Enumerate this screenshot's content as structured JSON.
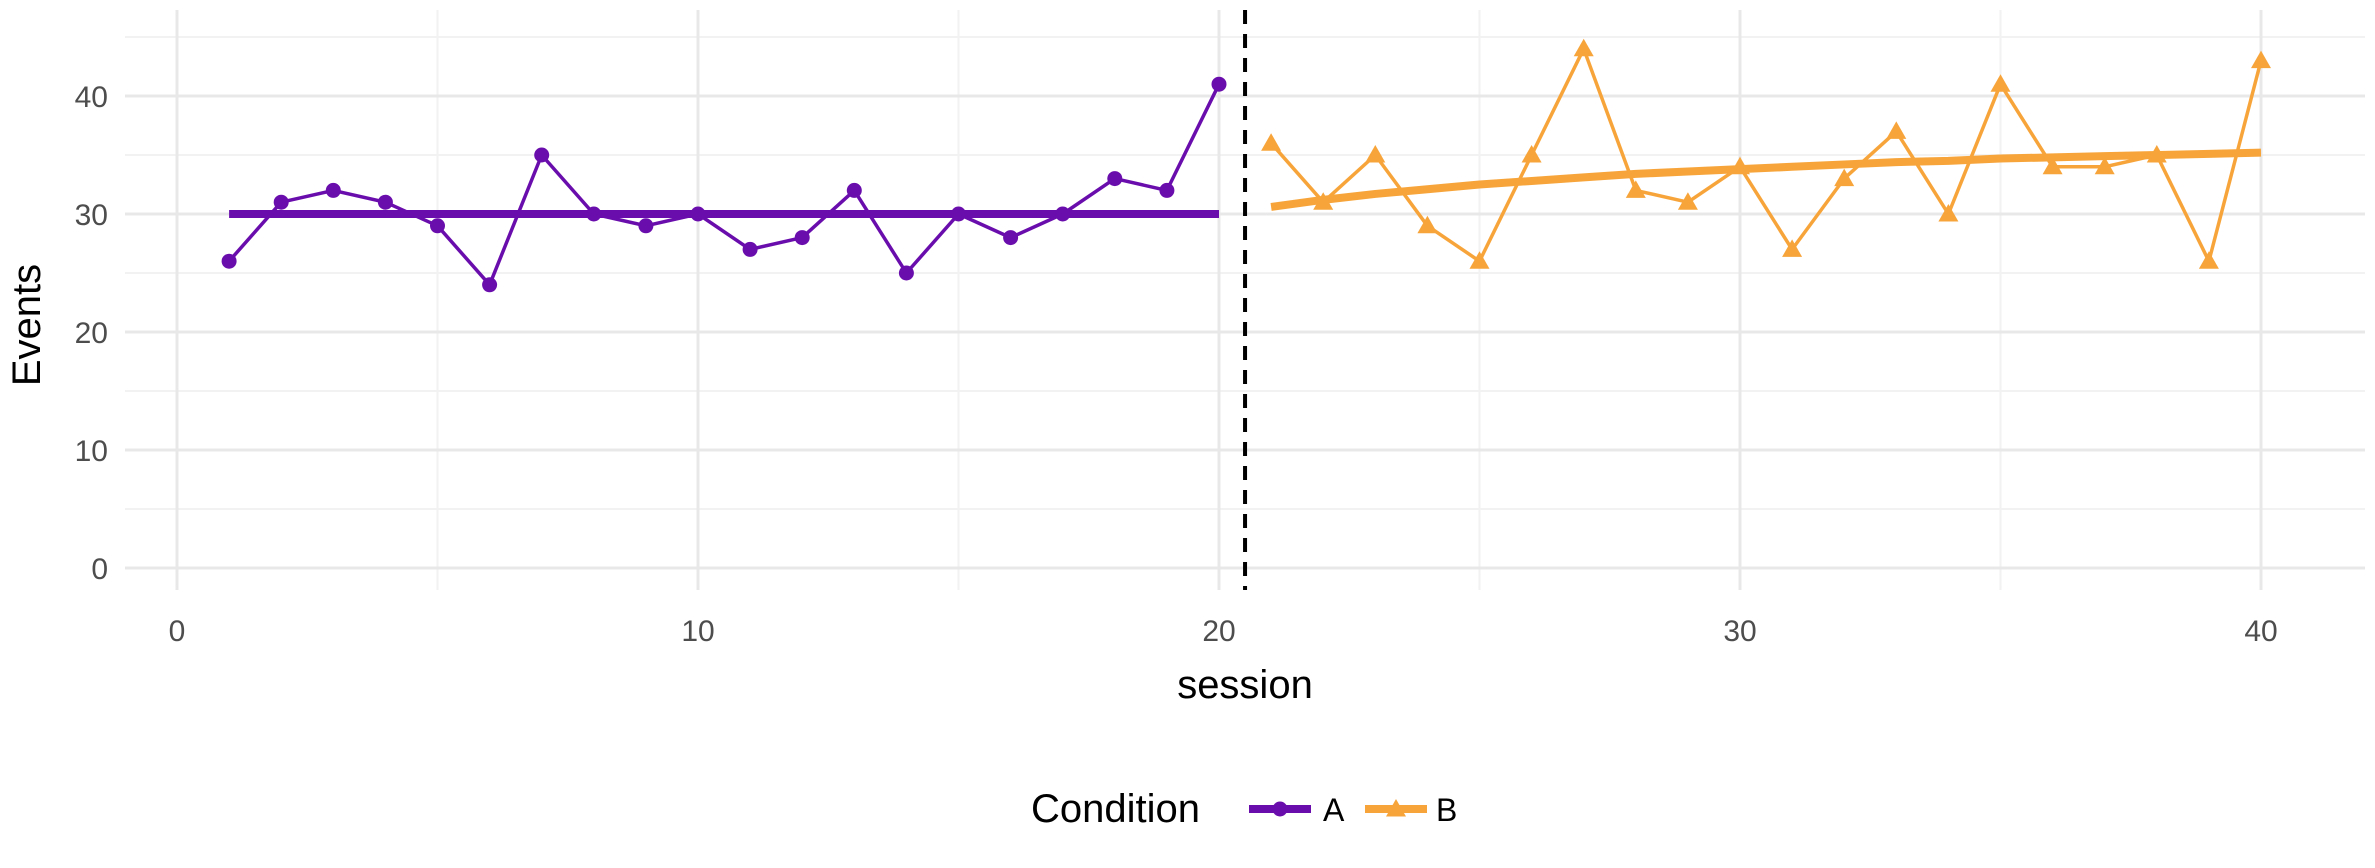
{
  "chart_data": {
    "type": "line",
    "xlabel": "session",
    "ylabel": "Events",
    "xlim": [
      -1,
      42
    ],
    "ylim": [
      -2,
      47
    ],
    "x_ticks": [
      0,
      10,
      20,
      30,
      40
    ],
    "y_ticks": [
      0,
      10,
      20,
      30,
      40
    ],
    "x_tick_labels": [
      "0",
      "10",
      "20",
      "30",
      "40"
    ],
    "y_tick_labels": [
      "0",
      "10",
      "20",
      "30",
      "40"
    ],
    "grid": true,
    "phase_change_x": 20.5,
    "legend": {
      "title": "Condition",
      "position": "bottom"
    },
    "series": [
      {
        "name": "A",
        "color": "#6a0dad",
        "marker": "circle",
        "x": [
          1,
          2,
          3,
          4,
          5,
          6,
          7,
          8,
          9,
          10,
          11,
          12,
          13,
          14,
          15,
          16,
          17,
          18,
          19,
          20
        ],
        "y": [
          26,
          31,
          32,
          31,
          29,
          24,
          35,
          30,
          29,
          30,
          27,
          28,
          32,
          25,
          30,
          28,
          30,
          33,
          32,
          41
        ],
        "trend": {
          "x": [
            1,
            20
          ],
          "y": [
            30,
            30
          ]
        }
      },
      {
        "name": "B",
        "color": "#f7a53b",
        "marker": "triangle",
        "x": [
          21,
          22,
          23,
          24,
          25,
          26,
          27,
          28,
          29,
          30,
          31,
          32,
          33,
          34,
          35,
          36,
          37,
          38,
          39,
          40
        ],
        "y": [
          36,
          31,
          35,
          29,
          26,
          35,
          44,
          32,
          31,
          34,
          27,
          33,
          37,
          30,
          41,
          34,
          34,
          35,
          26,
          43
        ],
        "trend": {
          "x": [
            21,
            22,
            23,
            24,
            25,
            26,
            27,
            28,
            29,
            30,
            31,
            32,
            33,
            34,
            35,
            36,
            37,
            38,
            39,
            40
          ],
          "y": [
            30.6,
            31.2,
            31.7,
            32.1,
            32.5,
            32.8,
            33.1,
            33.4,
            33.6,
            33.8,
            34.0,
            34.2,
            34.4,
            34.5,
            34.7,
            34.8,
            34.9,
            35.0,
            35.1,
            35.2
          ]
        }
      }
    ]
  }
}
